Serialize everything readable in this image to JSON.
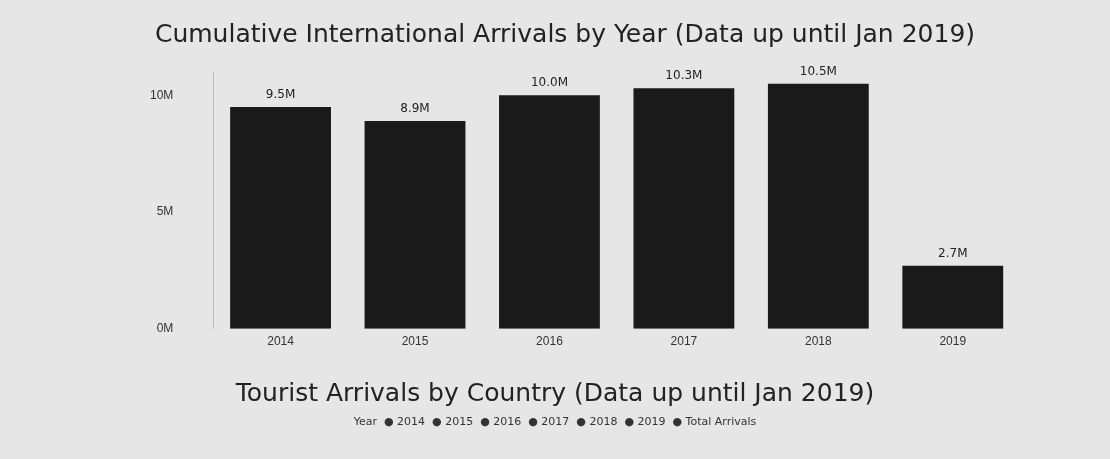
{
  "chart_data": [
    {
      "type": "bar",
      "title": "Cumulative International Arrivals by Year (Data up until Jan 2019)",
      "categories": [
        "2014",
        "2015",
        "2016",
        "2017",
        "2018",
        "2019"
      ],
      "values": [
        9.5,
        8.9,
        10.0,
        10.3,
        10.5,
        2.7
      ],
      "value_labels": [
        "9.5M",
        "8.9M",
        "10.0M",
        "10.3M",
        "10.5M",
        "2.7M"
      ],
      "color": "#1a1a1a",
      "ylim": [
        0,
        11
      ],
      "yticks": [
        {
          "value": 0,
          "label": "0M"
        },
        {
          "value": 5,
          "label": "5M"
        },
        {
          "value": 10,
          "label": "10M"
        }
      ],
      "grid": false,
      "legend": false
    },
    {
      "type": "other",
      "title": "Tourist Arrivals by Country (Data up until Jan 2019)",
      "annotations": [
        "Year  ● 2014  ● 2015  ● 2016  ● 2017  ● 2018  ● 2019  ● Total Arrivals"
      ]
    }
  ]
}
